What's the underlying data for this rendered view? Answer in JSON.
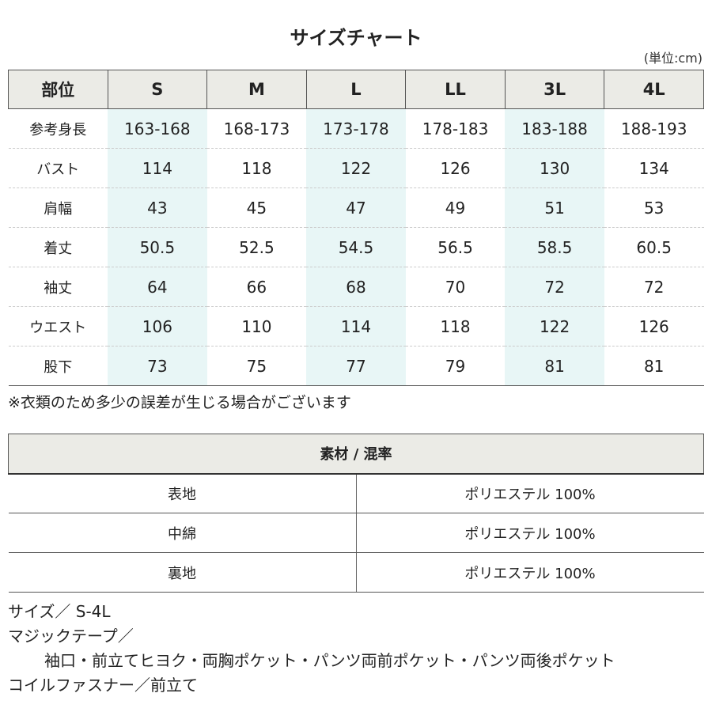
{
  "title": "サイズチャート",
  "unit": "(単位:cm)",
  "size_table": {
    "headers": [
      "部位",
      "S",
      "M",
      "L",
      "LL",
      "3L",
      "4L"
    ],
    "highlight_color": "#e8f6f6",
    "rows": [
      {
        "label": "参考身長",
        "values": [
          "163-168",
          "168-173",
          "173-178",
          "178-183",
          "183-188",
          "188-193"
        ]
      },
      {
        "label": "バスト",
        "values": [
          "114",
          "118",
          "122",
          "126",
          "130",
          "134"
        ]
      },
      {
        "label": "肩幅",
        "values": [
          "43",
          "45",
          "47",
          "49",
          "51",
          "53"
        ]
      },
      {
        "label": "着丈",
        "values": [
          "50.5",
          "52.5",
          "54.5",
          "56.5",
          "58.5",
          "60.5"
        ]
      },
      {
        "label": "袖丈",
        "values": [
          "64",
          "66",
          "68",
          "70",
          "72",
          "72"
        ]
      },
      {
        "label": "ウエスト",
        "values": [
          "106",
          "110",
          "114",
          "118",
          "122",
          "126"
        ]
      },
      {
        "label": "股下",
        "values": [
          "73",
          "75",
          "77",
          "79",
          "81",
          "81"
        ]
      }
    ]
  },
  "note": "※衣類のため多少の誤差が生じる場合がございます",
  "material_table": {
    "header": "素材 / 混率",
    "rows": [
      {
        "label": "表地",
        "value": "ポリエステル 100%"
      },
      {
        "label": "中綿",
        "value": "ポリエステル 100%"
      },
      {
        "label": "裏地",
        "value": "ポリエステル 100%"
      }
    ]
  },
  "specs": [
    "サイズ／ S-4L",
    "マジックテープ／",
    "袖口・前立てヒヨク・両胸ポケット・パンツ両前ポケット・パンツ両後ポケット",
    "コイルファスナー／前立て"
  ]
}
